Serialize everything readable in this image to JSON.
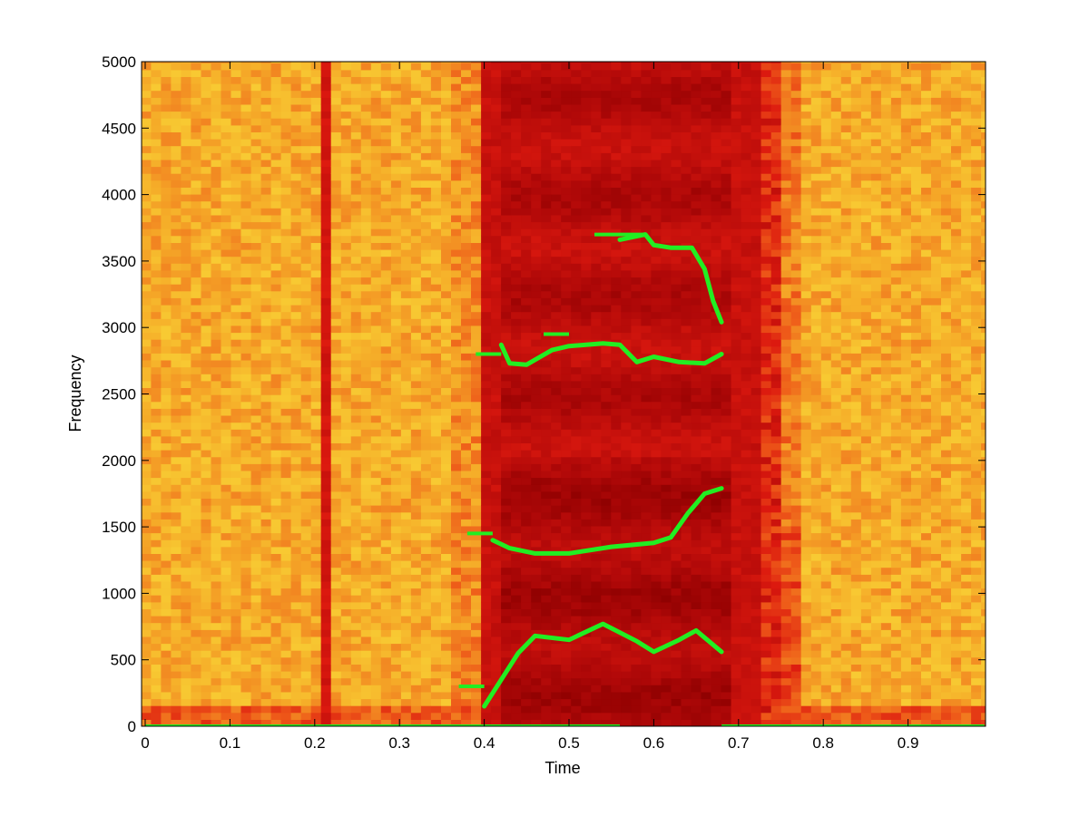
{
  "chart_data": {
    "type": "heatmap",
    "subtype": "spectrogram with formant tracks overlay",
    "title": "",
    "xlabel": "Time",
    "ylabel": "Frequency",
    "xlim": [
      0,
      0.99
    ],
    "ylim": [
      0,
      5000
    ],
    "x_ticks": [
      "0",
      "0.1",
      "0.2",
      "0.3",
      "0.4",
      "0.5",
      "0.6",
      "0.7",
      "0.8",
      "0.9"
    ],
    "y_ticks": [
      "0",
      "500",
      "1000",
      "1500",
      "2000",
      "2500",
      "3000",
      "3500",
      "4000",
      "4500",
      "5000"
    ],
    "x_tick_values": [
      0,
      0.1,
      0.2,
      0.3,
      0.4,
      0.5,
      0.6,
      0.7,
      0.8,
      0.9
    ],
    "y_tick_values": [
      0,
      500,
      1000,
      1500,
      2000,
      2500,
      3000,
      3500,
      4000,
      4500,
      5000
    ],
    "grid": false,
    "legend": "none",
    "colormap": "hot (yellow = low energy, dark red = high energy)",
    "spectrogram_regions": [
      {
        "from": 0.0,
        "to": 0.2,
        "level": "low"
      },
      {
        "from": 0.2,
        "to": 0.21,
        "level": "high",
        "note": "vertical burst"
      },
      {
        "from": 0.4,
        "to": 0.7,
        "level": "high",
        "note": "voiced segment"
      },
      {
        "from": 0.77,
        "to": 0.99,
        "level": "low"
      }
    ],
    "series": [
      {
        "color": "#22ee22",
        "points": [
          [
            0.4,
            150
          ],
          [
            0.42,
            350
          ],
          [
            0.44,
            550
          ],
          [
            0.46,
            680
          ],
          [
            0.5,
            650
          ],
          [
            0.54,
            770
          ],
          [
            0.58,
            640
          ],
          [
            0.6,
            560
          ],
          [
            0.63,
            650
          ],
          [
            0.65,
            720
          ],
          [
            0.68,
            560
          ]
        ]
      },
      {
        "color": "#22ee22",
        "points": [
          [
            0.41,
            1400
          ],
          [
            0.43,
            1340
          ],
          [
            0.46,
            1300
          ],
          [
            0.5,
            1300
          ],
          [
            0.55,
            1350
          ],
          [
            0.6,
            1380
          ],
          [
            0.62,
            1420
          ],
          [
            0.64,
            1600
          ],
          [
            0.66,
            1750
          ],
          [
            0.68,
            1790
          ]
        ]
      },
      {
        "color": "#22ee22",
        "points": [
          [
            0.42,
            2870
          ],
          [
            0.43,
            2730
          ],
          [
            0.45,
            2720
          ],
          [
            0.48,
            2830
          ],
          [
            0.5,
            2860
          ],
          [
            0.54,
            2880
          ],
          [
            0.56,
            2870
          ],
          [
            0.58,
            2740
          ],
          [
            0.6,
            2780
          ],
          [
            0.63,
            2740
          ],
          [
            0.66,
            2730
          ],
          [
            0.68,
            2800
          ]
        ]
      },
      {
        "color": "#22ee22",
        "points": [
          [
            0.56,
            3660
          ],
          [
            0.59,
            3700
          ],
          [
            0.6,
            3620
          ],
          [
            0.62,
            3600
          ],
          [
            0.645,
            3600
          ],
          [
            0.66,
            3440
          ],
          [
            0.67,
            3200
          ],
          [
            0.68,
            3040
          ]
        ]
      }
    ],
    "segments": [
      {
        "color": "#22ee22",
        "x": [
          0.37,
          0.4
        ],
        "y": 300
      },
      {
        "color": "#22ee22",
        "x": [
          0.38,
          0.41
        ],
        "y": 1450
      },
      {
        "color": "#22ee22",
        "x": [
          0.39,
          0.42
        ],
        "y": 2800
      },
      {
        "color": "#22ee22",
        "x": [
          0.47,
          0.5
        ],
        "y": 2950
      },
      {
        "color": "#22ee22",
        "x": [
          0.53,
          0.59
        ],
        "y": 3700
      },
      {
        "color": "#22ee22",
        "x": [
          0.0,
          0.56
        ],
        "y": 0
      },
      {
        "color": "#22ee22",
        "x": [
          0.68,
          0.99
        ],
        "y": 0
      }
    ]
  }
}
